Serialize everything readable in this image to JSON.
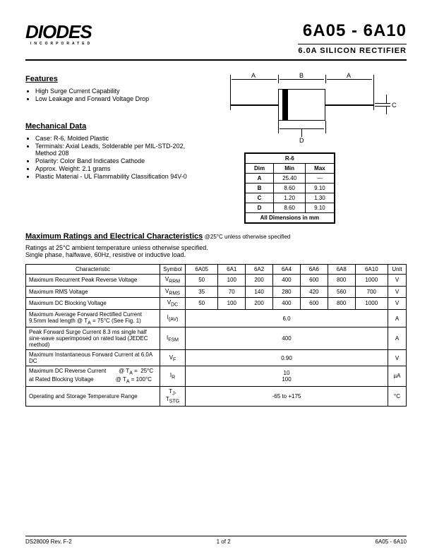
{
  "header": {
    "logo": "DIODES",
    "logo_sub": "INCORPORATED",
    "part": "6A05 - 6A10",
    "subtitle": "6.0A SILICON  RECTIFIER"
  },
  "features": {
    "title": "Features",
    "items": [
      "High Surge Current Capability",
      "Low Leakage and Forward Voltage Drop"
    ]
  },
  "mech": {
    "title": "Mechanical Data",
    "items": [
      "Case: R-6, Molded Plastic",
      "Terminals:  Axial Leads, Solderable per MIL-STD-202, Method 208",
      "Polarity: Color Band Indicates Cathode",
      "Approx. Weight:  2.1 grams",
      "Plastic Material - UL Flammability Classification 94V-0"
    ]
  },
  "diagram": {
    "A": "A",
    "B": "B",
    "C": "C",
    "D": "D"
  },
  "dim_table": {
    "title": "R-6",
    "head": [
      "Dim",
      "Min",
      "Max"
    ],
    "rows": [
      [
        "A",
        "25.40",
        "—"
      ],
      [
        "B",
        "8.60",
        "9.10"
      ],
      [
        "C",
        "1.20",
        "1.30"
      ],
      [
        "D",
        "8.60",
        "9.10"
      ]
    ],
    "footer": "All Dimensions in mm"
  },
  "max_ratings": {
    "title": "Maximum Ratings and Electrical Characteristics",
    "note": "@25°C unless otherwise specified",
    "text1": "Ratings at 25°C ambient temperature unless otherwise specified.",
    "text2": "Single phase, halfwave, 60Hz, resistive or inductive load."
  },
  "char_table": {
    "head": [
      "Characteristic",
      "Symbol",
      "6A05",
      "6A1",
      "6A2",
      "6A4",
      "6A6",
      "6A8",
      "6A10",
      "Unit"
    ],
    "rows": [
      {
        "c": "Maximum Recurrent Peak Reverse Voltage",
        "s": "V<sub>RRM</sub>",
        "v": [
          "50",
          "100",
          "200",
          "400",
          "600",
          "800",
          "1000"
        ],
        "u": "V"
      },
      {
        "c": "Maximum RMS Voltage",
        "s": "V<sub>RMS</sub>",
        "v": [
          "35",
          "70",
          "140",
          "280",
          "420",
          "560",
          "700"
        ],
        "u": "V"
      },
      {
        "c": "Maximum DC Blocking Voltage",
        "s": "V<sub>DC</sub>",
        "v": [
          "50",
          "100",
          "200",
          "400",
          "600",
          "800",
          "1000"
        ],
        "u": "V"
      },
      {
        "c": "Maximum Average Forward Rectified Current<br>9.5mm lead length @ T<sub>A</sub> = 75°C (See Fig. 1)",
        "s": "I<sub>(AV)</sub>",
        "span": "6.0",
        "u": "A"
      },
      {
        "c": "Peak Forward Surge Current 8.3 ms single half sine-wave superimposed on rated load (JEDEC method)",
        "s": "I<sub>FSM</sub>",
        "span": "400",
        "u": "A"
      },
      {
        "c": "Maximum Instantaneous Forward Current at 6.0A DC",
        "s": "V<sub>F</sub>",
        "span": "0.90",
        "u": "V"
      },
      {
        "c": "Maximum DC Reverse Current&nbsp;&nbsp;&nbsp;&nbsp;&nbsp;&nbsp;&nbsp;&nbsp;@ T<sub>A</sub> = &nbsp;25°C<br>at Rated Blocking Voltage&nbsp;&nbsp;&nbsp;&nbsp;&nbsp;&nbsp;&nbsp;&nbsp;&nbsp;&nbsp;&nbsp;&nbsp;&nbsp;&nbsp;@ T<sub>A</sub> = 100°C",
        "s": "I<sub>R</sub>",
        "span": "10<br>100",
        "u": "µA"
      },
      {
        "c": "Operating and Storage Temperature Range",
        "s": "T<sub>J</sub>,<br>T<sub>STG</sub>",
        "span": "-65 to +175",
        "u": "°C"
      }
    ]
  },
  "footer": {
    "left": "DS28009 Rev. F-2",
    "center": "1 of 2",
    "right": "6A05 - 6A10"
  }
}
